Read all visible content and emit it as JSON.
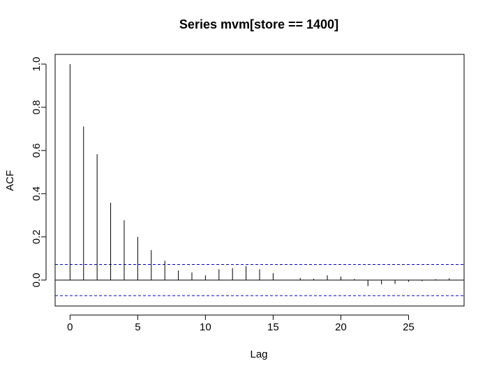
{
  "chart_data": {
    "type": "bar",
    "title": "Series  mvm[store == 1400]",
    "xlabel": "Lag",
    "ylabel": "ACF",
    "xlim": [
      -1.1,
      29.1
    ],
    "ylim": [
      -0.12,
      1.045
    ],
    "x_ticks": [
      0,
      5,
      10,
      15,
      20,
      25
    ],
    "y_ticks": [
      0.0,
      0.2,
      0.4,
      0.6,
      0.8,
      1.0
    ],
    "y_tick_labels": [
      "0.0",
      "0.2",
      "0.4",
      "0.6",
      "0.8",
      "1.0"
    ],
    "confidence_band": [
      -0.072,
      0.072
    ],
    "grid": false,
    "lags": [
      0,
      1,
      2,
      3,
      4,
      5,
      6,
      7,
      8,
      9,
      10,
      11,
      12,
      13,
      14,
      15,
      16,
      17,
      18,
      19,
      20,
      21,
      22,
      23,
      24,
      25,
      26,
      27,
      28
    ],
    "values": [
      1.0,
      0.711,
      0.583,
      0.358,
      0.277,
      0.2,
      0.139,
      0.09,
      0.045,
      0.035,
      0.022,
      0.05,
      0.055,
      0.065,
      0.05,
      0.032,
      0.001,
      0.01,
      0.006,
      0.022,
      0.016,
      0.005,
      -0.028,
      -0.02,
      -0.018,
      -0.008,
      -0.005,
      0.004,
      0.008
    ],
    "colors": {
      "bars": "#000000",
      "band": "#0000cc",
      "zero_line": "#000000"
    }
  }
}
